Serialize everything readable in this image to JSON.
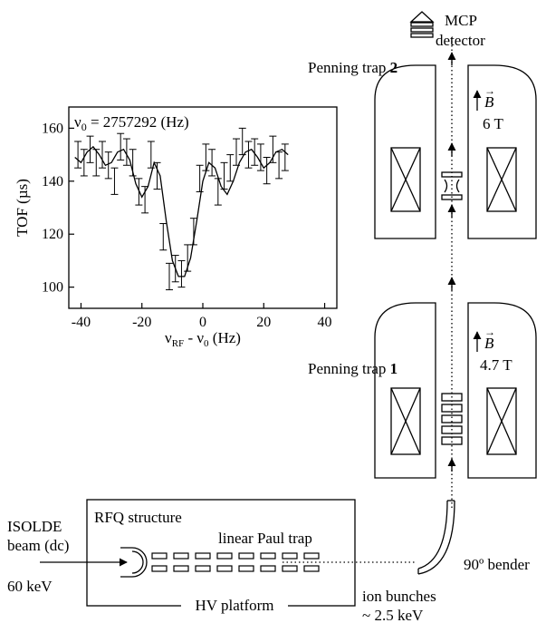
{
  "labels": {
    "detector_line1": "MCP",
    "detector_line2": "detector",
    "trap2_text": "Penning trap ",
    "trap2_num": "2",
    "trap1_text": "Penning trap ",
    "trap1_num": "1",
    "field_symbol": "B",
    "field_arrow": "→",
    "field2": "6 T",
    "field1": "4.7 T",
    "rfq": "RFQ structure",
    "paul": "linear Paul trap",
    "hv": "HV platform",
    "isolde1": "ISOLDE",
    "isolde2": "beam (dc)",
    "energy_in": "60 keV",
    "bender": "90º bender",
    "bunches1": "ion bunches",
    "bunches2": "~ 2.5 keV"
  },
  "chart_data": {
    "type": "scatter",
    "annotation_main": "ν",
    "annotation_sub": "0",
    "annotation_rest": " = 2757292 (Hz)",
    "ylabel": "TOF (µs)",
    "xlabel_main": "ν",
    "xlabel_sub1": "RF",
    "xlabel_mid": " - ν",
    "xlabel_sub2": "0",
    "xlabel_tail": " (Hz)",
    "xlim": [
      -44,
      44
    ],
    "ylim": [
      92,
      168
    ],
    "xticks": [
      -40,
      -20,
      0,
      20,
      40
    ],
    "yticks": [
      100,
      120,
      140,
      160
    ],
    "points": [
      {
        "x": -41,
        "y": 150,
        "err": 5
      },
      {
        "x": -39,
        "y": 147,
        "err": 5
      },
      {
        "x": -37,
        "y": 152,
        "err": 5
      },
      {
        "x": -35,
        "y": 147,
        "err": 5
      },
      {
        "x": -33,
        "y": 150,
        "err": 5
      },
      {
        "x": -31,
        "y": 146,
        "err": 5
      },
      {
        "x": -29,
        "y": 140,
        "err": 5
      },
      {
        "x": -27,
        "y": 153,
        "err": 5
      },
      {
        "x": -25,
        "y": 151,
        "err": 5
      },
      {
        "x": -23,
        "y": 147,
        "err": 5
      },
      {
        "x": -21,
        "y": 136,
        "err": 5
      },
      {
        "x": -19,
        "y": 133,
        "err": 5
      },
      {
        "x": -17,
        "y": 150,
        "err": 5
      },
      {
        "x": -15,
        "y": 142,
        "err": 5
      },
      {
        "x": -13,
        "y": 119,
        "err": 5
      },
      {
        "x": -11,
        "y": 104,
        "err": 5
      },
      {
        "x": -9,
        "y": 107,
        "err": 5
      },
      {
        "x": -7,
        "y": 105,
        "err": 5
      },
      {
        "x": -5,
        "y": 111,
        "err": 5
      },
      {
        "x": -3,
        "y": 121,
        "err": 5
      },
      {
        "x": -1,
        "y": 141,
        "err": 5
      },
      {
        "x": 1,
        "y": 149,
        "err": 5
      },
      {
        "x": 3,
        "y": 147,
        "err": 5
      },
      {
        "x": 5,
        "y": 136,
        "err": 5
      },
      {
        "x": 7,
        "y": 142,
        "err": 5
      },
      {
        "x": 9,
        "y": 145,
        "err": 5
      },
      {
        "x": 11,
        "y": 151,
        "err": 5
      },
      {
        "x": 13,
        "y": 155,
        "err": 5
      },
      {
        "x": 15,
        "y": 150,
        "err": 5
      },
      {
        "x": 17,
        "y": 151,
        "err": 5
      },
      {
        "x": 19,
        "y": 149,
        "err": 5
      },
      {
        "x": 21,
        "y": 144,
        "err": 5
      },
      {
        "x": 23,
        "y": 152,
        "err": 5
      },
      {
        "x": 25,
        "y": 146,
        "err": 5
      },
      {
        "x": 27,
        "y": 149,
        "err": 5
      }
    ],
    "fit_curve": [
      [
        -42,
        149
      ],
      [
        -40,
        147
      ],
      [
        -38,
        151
      ],
      [
        -36,
        153
      ],
      [
        -34,
        150
      ],
      [
        -32,
        146
      ],
      [
        -30,
        147
      ],
      [
        -28,
        151
      ],
      [
        -26,
        152
      ],
      [
        -24,
        148
      ],
      [
        -22,
        139
      ],
      [
        -20,
        134
      ],
      [
        -18,
        138
      ],
      [
        -16,
        147
      ],
      [
        -14,
        142
      ],
      [
        -12,
        125
      ],
      [
        -10,
        110
      ],
      [
        -8,
        104
      ],
      [
        -6,
        104
      ],
      [
        -4,
        111
      ],
      [
        -2,
        125
      ],
      [
        0,
        140
      ],
      [
        2,
        147
      ],
      [
        4,
        145
      ],
      [
        6,
        138
      ],
      [
        8,
        135
      ],
      [
        10,
        140
      ],
      [
        12,
        147
      ],
      [
        14,
        151
      ],
      [
        16,
        152
      ],
      [
        18,
        149
      ],
      [
        20,
        145
      ],
      [
        22,
        147
      ],
      [
        24,
        151
      ],
      [
        26,
        152
      ],
      [
        28,
        150
      ]
    ]
  }
}
